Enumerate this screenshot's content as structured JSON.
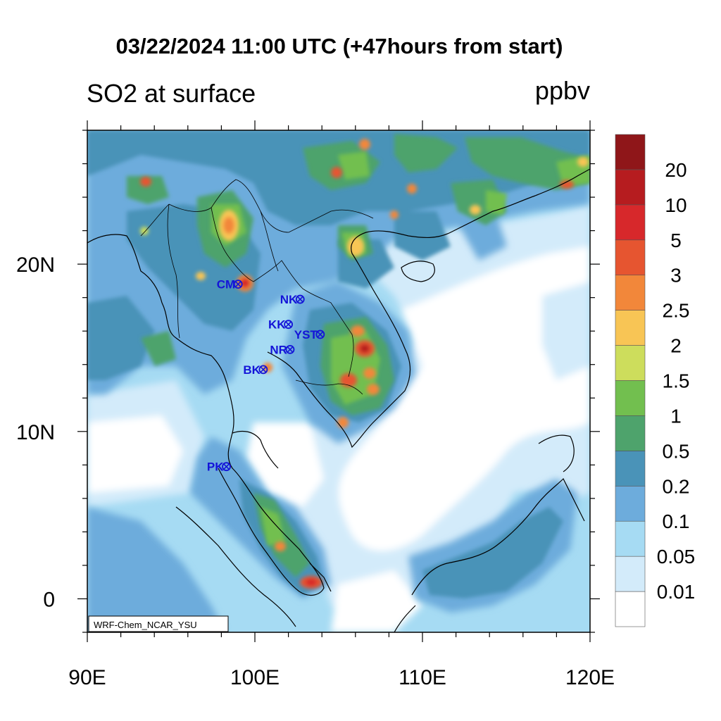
{
  "title": "03/22/2024 11:00 UTC (+47hours from start)",
  "left_subtitle": "SO2 at surface",
  "units": "ppbv",
  "credit": "WRF-Chem_NCAR_YSU",
  "map": {
    "lon_range": [
      90,
      120
    ],
    "lat_range": [
      -2,
      28
    ],
    "x_ticks": [
      {
        "value": 90,
        "label": "90E"
      },
      {
        "value": 100,
        "label": "100E"
      },
      {
        "value": 110,
        "label": "110E"
      },
      {
        "value": 120,
        "label": "120E"
      }
    ],
    "y_ticks": [
      {
        "value": 20,
        "label": "20N"
      },
      {
        "value": 10,
        "label": "10N"
      },
      {
        "value": 0,
        "label": "0"
      }
    ]
  },
  "stations": [
    {
      "name": "CM",
      "lon": 99.0,
      "lat": 18.8
    },
    {
      "name": "NK",
      "lon": 102.7,
      "lat": 17.9
    },
    {
      "name": "KK",
      "lon": 102.0,
      "lat": 16.4
    },
    {
      "name": "YST",
      "lon": 103.9,
      "lat": 15.8
    },
    {
      "name": "NR",
      "lon": 102.1,
      "lat": 14.9
    },
    {
      "name": "BK",
      "lon": 100.5,
      "lat": 13.7
    },
    {
      "name": "PK",
      "lon": 98.3,
      "lat": 7.9
    }
  ],
  "colorbar": {
    "levels": [
      "0.01",
      "0.05",
      "0.1",
      "0.2",
      "0.5",
      "1",
      "1.5",
      "2",
      "2.5",
      "3",
      "5",
      "10",
      "20"
    ],
    "colors": [
      "#ffffff",
      "#d3ebfa",
      "#a6dbf3",
      "#6dacdc",
      "#4a93b8",
      "#4ea36c",
      "#72bf4f",
      "#cddd5c",
      "#f8c555",
      "#f2873a",
      "#e65530",
      "#d7282b",
      "#b61c1f",
      "#8f1619"
    ]
  },
  "colors": {
    "station": "#1414d8",
    "coast": "#000000"
  }
}
